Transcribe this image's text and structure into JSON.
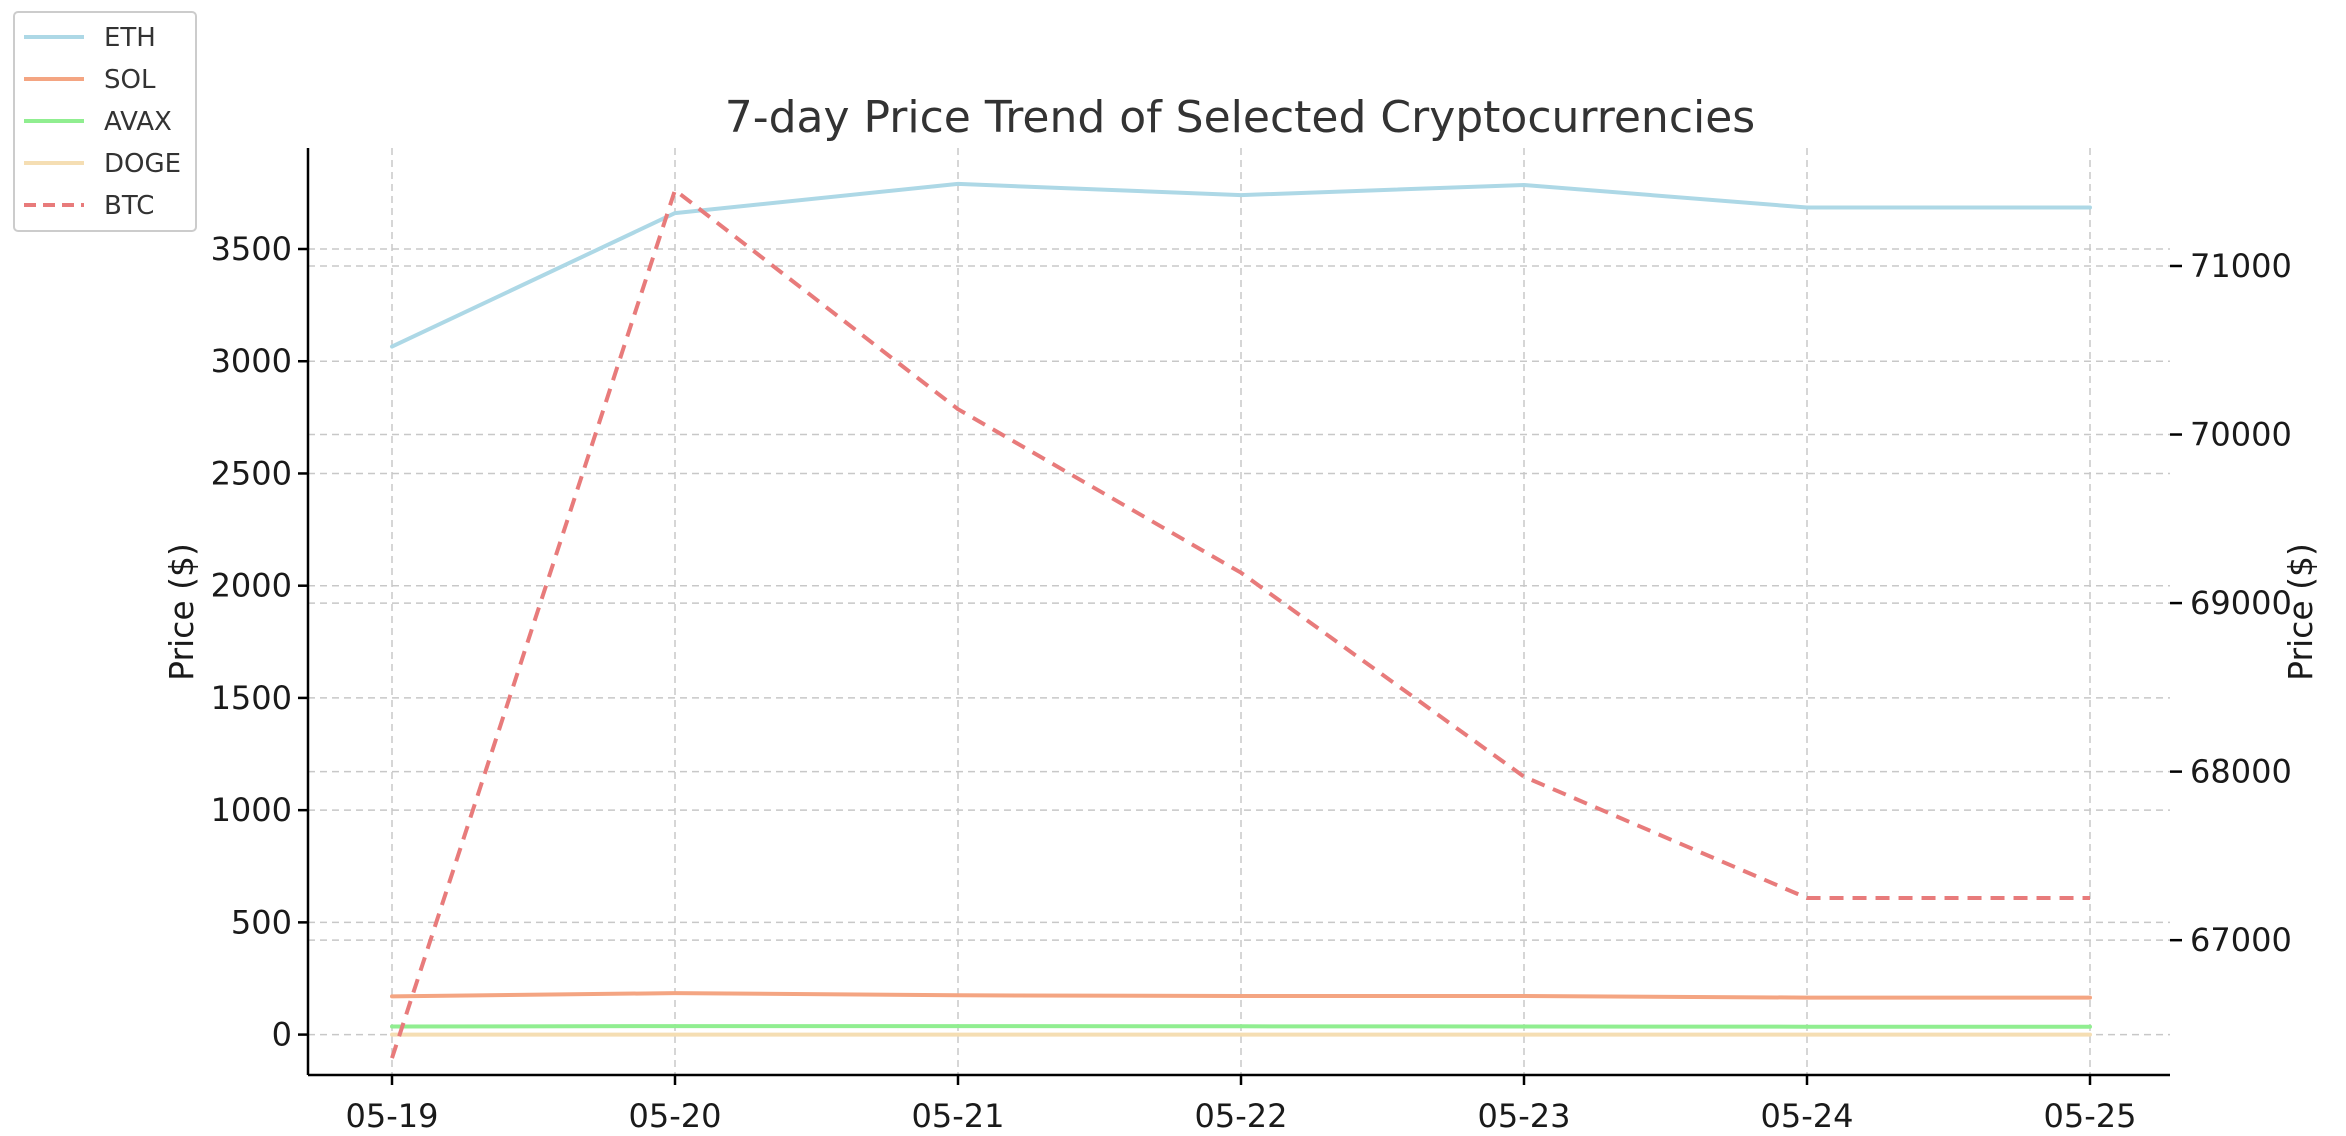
{
  "chart_data": {
    "type": "line",
    "title": "7-day Price Trend of Selected Cryptocurrencies",
    "x": [
      "05-19",
      "05-20",
      "05-21",
      "05-22",
      "05-23",
      "05-24",
      "05-25"
    ],
    "xlabel": "",
    "ylabel_left": "Price ($)",
    "ylabel_right": "Price ($)",
    "ylim_left": [
      -180,
      3950
    ],
    "yticks_left": [
      0,
      500,
      1000,
      1500,
      2000,
      2500,
      3000,
      3500
    ],
    "ylim_right": [
      66200,
      71700
    ],
    "yticks_right": [
      67000,
      68000,
      69000,
      70000,
      71000
    ],
    "grid": true,
    "legend_position": "top-left (outside plot)",
    "series": [
      {
        "name": "ETH",
        "axis": "left",
        "color": "#add8e6",
        "dash": "solid",
        "values": [
          3065,
          3660,
          3790,
          3740,
          3785,
          3685,
          3685
        ]
      },
      {
        "name": "SOL",
        "axis": "left",
        "color": "#f4a582",
        "dash": "solid",
        "values": [
          170,
          185,
          175,
          172,
          172,
          165,
          165
        ]
      },
      {
        "name": "AVAX",
        "axis": "left",
        "color": "#90ee90",
        "dash": "solid",
        "values": [
          36,
          38,
          38,
          37,
          36,
          35,
          35
        ]
      },
      {
        "name": "DOGE",
        "axis": "left",
        "color": "#f5deb3",
        "dash": "solid",
        "values": [
          0.16,
          0.17,
          0.17,
          0.16,
          0.16,
          0.16,
          0.16
        ]
      },
      {
        "name": "BTC",
        "axis": "right",
        "color": "#e87b7b",
        "dash": "dashed",
        "values": [
          66300,
          71450,
          70150,
          69180,
          67970,
          67250,
          67250
        ]
      }
    ]
  }
}
